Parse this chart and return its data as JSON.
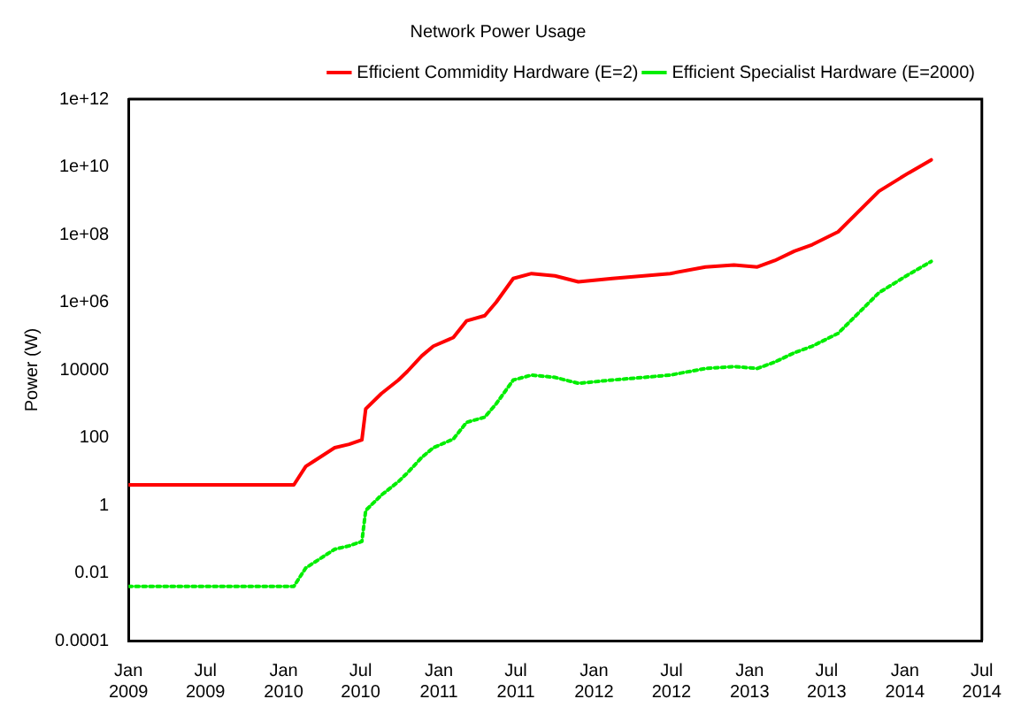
{
  "chart_data": {
    "type": "line",
    "title": "Network Power Usage",
    "ylabel": "Power (W)",
    "x": [
      "2009-01-01",
      "2010-01-25",
      "2010-02-22",
      "2010-03-13",
      "2010-05-01",
      "2010-06-04",
      "2010-07-04",
      "2010-07-13",
      "2010-08-19",
      "2010-09-28",
      "2010-10-19",
      "2010-11-22",
      "2010-12-19",
      "2011-02-04",
      "2011-03-07",
      "2011-04-19",
      "2011-05-16",
      "2011-06-25",
      "2011-08-07",
      "2011-10-01",
      "2011-11-25",
      "2012-02-13",
      "2012-06-28",
      "2012-09-19",
      "2012-11-25",
      "2013-01-19",
      "2013-03-01",
      "2013-04-16",
      "2013-05-28",
      "2013-07-28",
      "2013-11-01",
      "2014-01-10",
      "2014-03-04"
    ],
    "series": [
      {
        "name": "Efficient Commidity Hardware (E=2)",
        "color": "#ff0000",
        "line_style": "solid",
        "values": [
          4,
          4,
          14,
          20,
          50,
          63,
          85,
          700,
          2000,
          5000,
          9000,
          26000,
          50000,
          90000,
          280000,
          400000,
          1000000,
          5000000,
          7000000,
          6000000,
          4000000,
          5000000,
          7000000,
          11000000,
          12500000,
          11000000,
          17000000,
          32000000,
          50000000,
          120000000,
          1900000000,
          6600000000,
          16000000000
        ]
      },
      {
        "name": "Efficient Specialist Hardware (E=2000)",
        "color": "#00ee00",
        "line_style": "dotted",
        "values": [
          0.004,
          0.004,
          0.014,
          0.02,
          0.05,
          0.063,
          0.085,
          0.7,
          2,
          5,
          9,
          26,
          50,
          90,
          280,
          400,
          1000,
          5000,
          7000,
          6000,
          4000,
          5000,
          7000,
          11000,
          12500,
          11000,
          17000,
          32000,
          50000,
          120000,
          1900000,
          6600000,
          16000000
        ]
      }
    ],
    "log": "y",
    "ylim": [
      0.0001,
      1000000000000
    ],
    "yticks": [
      {
        "value": 0.0001,
        "label": "0.0001"
      },
      0.01,
      1,
      100,
      10000,
      {
        "value": 1000000,
        "label": "1e+06"
      },
      {
        "value": 100000000,
        "label": "1e+08"
      },
      {
        "value": 10000000000,
        "label": "1e+10"
      },
      {
        "value": 1000000000000,
        "label": "1e+12"
      }
    ],
    "xlim": [
      "2009-01-01",
      "2014-07-01"
    ],
    "xticks": [
      {
        "value": "2009-01-01",
        "label": "Jan 2009"
      },
      {
        "value": "2009-07-01",
        "label": "Jul 2009"
      },
      {
        "value": "2010-01-01",
        "label": "Jan 2010"
      },
      {
        "value": "2010-07-01",
        "label": "Jul 2010"
      },
      {
        "value": "2011-01-01",
        "label": "Jan 2011"
      },
      {
        "value": "2011-07-01",
        "label": "Jul 2011"
      },
      {
        "value": "2012-01-01",
        "label": "Jan 2012"
      },
      {
        "value": "2012-07-01",
        "label": "Jul 2012"
      },
      {
        "value": "2013-01-01",
        "label": "Jan 2013"
      },
      {
        "value": "2013-07-01",
        "label": "Jul 2013"
      },
      {
        "value": "2014-01-01",
        "label": "Jan 2014"
      },
      {
        "value": "2014-07-01",
        "label": "Jul 2014"
      }
    ],
    "grid": false,
    "legend": "top right",
    "marker": "none"
  }
}
